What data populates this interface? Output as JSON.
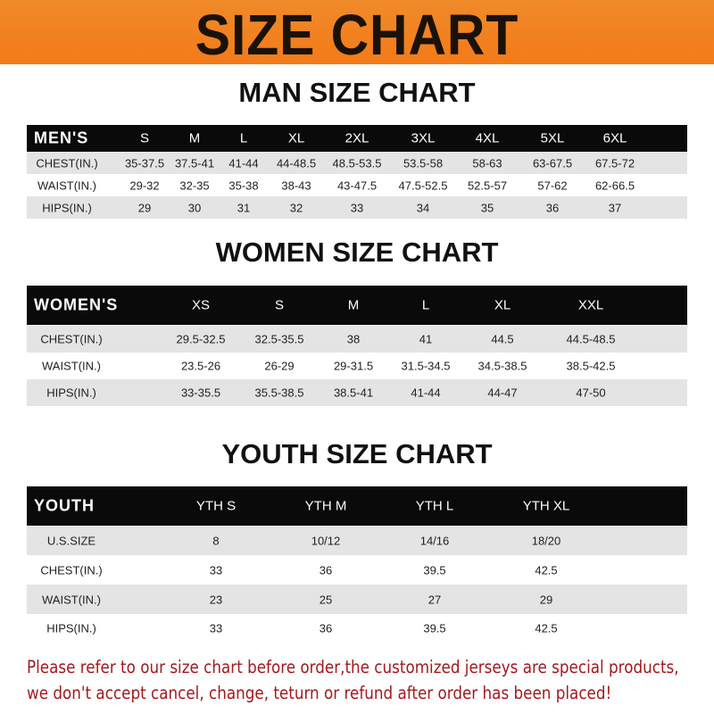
{
  "banner_title": "SIZE CHART",
  "men": {
    "title": "MAN SIZE CHART",
    "header": [
      "MEN'S",
      "S",
      "M",
      "L",
      "XL",
      "2XL",
      "3XL",
      "4XL",
      "5XL",
      "6XL"
    ],
    "rows": [
      [
        "CHEST(IN.)",
        "35-37.5",
        "37.5-41",
        "41-44",
        "44-48.5",
        "48.5-53.5",
        "53.5-58",
        "58-63",
        "63-67.5",
        "67.5-72"
      ],
      [
        "WAIST(IN.)",
        "29-32",
        "32-35",
        "35-38",
        "38-43",
        "43-47.5",
        "47.5-52.5",
        "52.5-57",
        "57-62",
        "62-66.5"
      ],
      [
        "HIPS(IN.)",
        "29",
        "30",
        "31",
        "32",
        "33",
        "34",
        "35",
        "36",
        "37"
      ]
    ]
  },
  "women": {
    "title": "WOMEN SIZE CHART",
    "header": [
      "WOMEN'S",
      "XS",
      "S",
      "M",
      "L",
      "XL",
      "XXL"
    ],
    "rows": [
      [
        "CHEST(IN.)",
        "29.5-32.5",
        "32.5-35.5",
        "38",
        "41",
        "44.5",
        "44.5-48.5"
      ],
      [
        "WAIST(IN.)",
        "23.5-26",
        "26-29",
        "29-31.5",
        "31.5-34.5",
        "34.5-38.5",
        "38.5-42.5"
      ],
      [
        "HIPS(IN.)",
        "33-35.5",
        "35.5-38.5",
        "38.5-41",
        "41-44",
        "44-47",
        "47-50"
      ]
    ]
  },
  "youth": {
    "title": "YOUTH SIZE CHART",
    "header": [
      "YOUTH",
      "YTH S",
      "YTH M",
      "YTH L",
      "YTH XL"
    ],
    "rows": [
      [
        "U.S.SIZE",
        "8",
        "10/12",
        "14/16",
        "18/20"
      ],
      [
        "CHEST(IN.)",
        "33",
        "36",
        "39.5",
        "42.5"
      ],
      [
        "WAIST(IN.)",
        "23",
        "25",
        "27",
        "29"
      ],
      [
        "HIPS(IN.)",
        "33",
        "36",
        "39.5",
        "42.5"
      ]
    ]
  },
  "note": {
    "line1": "Please refer to our size chart before order,the customized jerseys are special products,",
    "line2": "we don't accept cancel, change, teturn or refund after order has been placed!"
  },
  "colors": {
    "banner": "#f47a18",
    "header_row": "#0a0a0a",
    "stripe": "#e4e4e4",
    "note": "#a3191c"
  }
}
